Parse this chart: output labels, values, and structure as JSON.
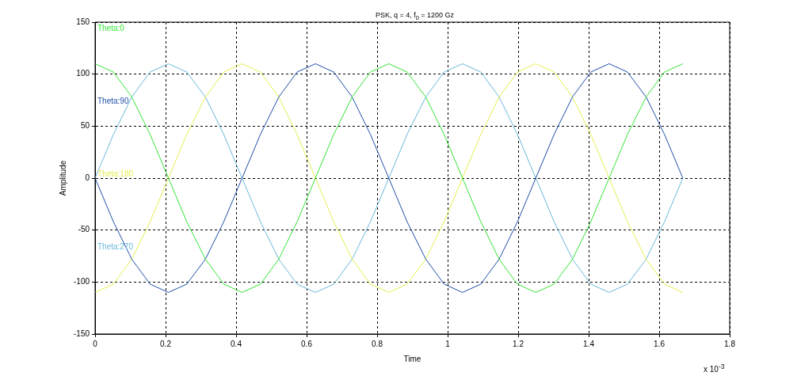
{
  "chart_data": {
    "type": "line",
    "title": "PSK, q = 4, f$_{0}$ = 1200 Gz",
    "xlabel": "Time",
    "ylabel": "Amplitude",
    "annotations": [
      "x 10$^{-3}$"
    ],
    "x": [
      0,
      0.052,
      0.104,
      0.156,
      0.208,
      0.26,
      0.313,
      0.365,
      0.417,
      0.469,
      0.521,
      0.573,
      0.625,
      0.677,
      0.729,
      0.781,
      0.833,
      0.885,
      0.938,
      0.99,
      1.042,
      1.094,
      1.146,
      1.198,
      1.25,
      1.302,
      1.354,
      1.406,
      1.458,
      1.51,
      1.563,
      1.615,
      1.667
    ],
    "series": [
      {
        "name": "Theta:0",
        "color": "#33e633",
        "values": [
          110,
          102,
          78,
          42,
          0,
          -42,
          -78,
          -102,
          -110,
          -102,
          -78,
          -42,
          0,
          42,
          78,
          102,
          110,
          102,
          78,
          42,
          0,
          -42,
          -78,
          -102,
          -110,
          -102,
          -78,
          -42,
          0,
          42,
          78,
          102,
          110
        ]
      },
      {
        "name": "Theta:90",
        "color": "#1f4fa8",
        "values": [
          0,
          -42,
          -78,
          -102,
          -110,
          -102,
          -78,
          -42,
          0,
          42,
          78,
          102,
          110,
          102,
          78,
          42,
          0,
          -42,
          -78,
          -102,
          -110,
          -102,
          -78,
          -42,
          0,
          42,
          78,
          102,
          110,
          102,
          78,
          42,
          0
        ]
      },
      {
        "name": "Theta:180",
        "color": "#e6ee50",
        "values": [
          -110,
          -102,
          -78,
          -42,
          0,
          42,
          78,
          102,
          110,
          102,
          78,
          42,
          0,
          -42,
          -78,
          -102,
          -110,
          -102,
          -78,
          -42,
          0,
          42,
          78,
          102,
          110,
          102,
          78,
          42,
          0,
          -42,
          -78,
          -102,
          -110
        ]
      },
      {
        "name": "Theta:270",
        "color": "#6ab8dc",
        "values": [
          0,
          42,
          78,
          102,
          110,
          102,
          78,
          42,
          0,
          -42,
          -78,
          -102,
          -110,
          -102,
          -78,
          -42,
          0,
          42,
          78,
          102,
          110,
          102,
          78,
          42,
          0,
          -42,
          -78,
          -102,
          -110,
          -102,
          -78,
          -42,
          0
        ]
      }
    ],
    "xlim": [
      0,
      1.8
    ],
    "xticks": [
      0,
      0.2,
      0.4,
      0.6,
      0.8,
      1,
      1.2,
      1.4,
      1.6,
      1.8
    ],
    "ylim": [
      -150,
      150
    ],
    "yticks": [
      -150,
      -100,
      -50,
      0,
      50,
      100,
      150
    ],
    "grid": true,
    "legend": false,
    "marker": "none",
    "line_style": "solid"
  }
}
